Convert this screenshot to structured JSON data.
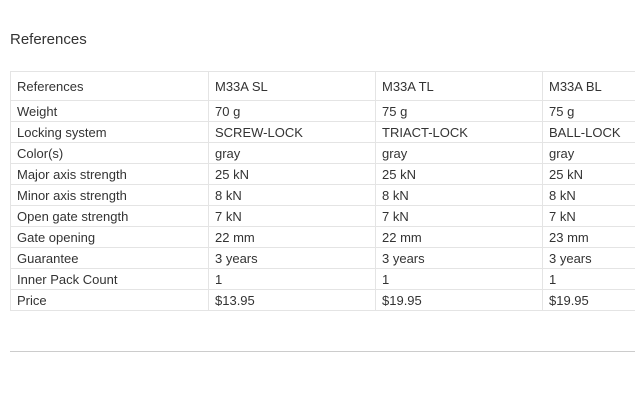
{
  "section_title": "References",
  "table": {
    "header": [
      "References",
      "M33A SL",
      "M33A TL",
      "M33A BL"
    ],
    "rows": [
      [
        "Weight",
        "70 g",
        "75 g",
        "75 g"
      ],
      [
        "Locking system",
        "SCREW-LOCK",
        "TRIACT-LOCK",
        "BALL-LOCK"
      ],
      [
        "Color(s)",
        "gray",
        "gray",
        "gray"
      ],
      [
        "Major axis strength",
        "25 kN",
        "25 kN",
        "25 kN"
      ],
      [
        "Minor axis strength",
        "8 kN",
        "8 kN",
        "8 kN"
      ],
      [
        "Open gate strength",
        "7 kN",
        "7 kN",
        "7 kN"
      ],
      [
        "Gate opening",
        "22 mm",
        "22 mm",
        "23 mm"
      ],
      [
        "Guarantee",
        "3 years",
        "3 years",
        "3 years"
      ],
      [
        "Inner Pack Count",
        "1",
        "1",
        "1"
      ],
      [
        "Price",
        "$13.95",
        "$19.95",
        "$19.95"
      ]
    ]
  }
}
